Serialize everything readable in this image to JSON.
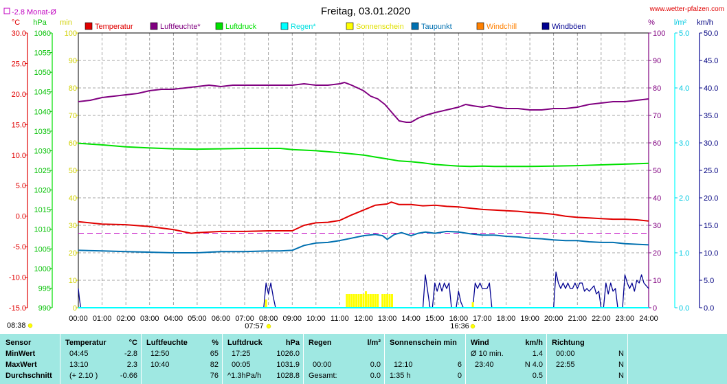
{
  "header": {
    "title": "Freitag, 03.01.2020",
    "site": "www.wetter-pfalzen.com",
    "month_avg_label": "-2.8 Monat-Ø",
    "sunrise_time": "07:57",
    "sunset_time": "16:36",
    "current_time": "08:38"
  },
  "legend": [
    {
      "name": "Temperatur",
      "color": "#e00000"
    },
    {
      "name": "Luftfeuchte*",
      "color": "#800080"
    },
    {
      "name": "Luftdruck",
      "color": "#00e000"
    },
    {
      "name": "Regen*",
      "color": "#00ffff"
    },
    {
      "name": "Sonnenschein",
      "color": "#ffff00"
    },
    {
      "name": "Taupunkt",
      "color": "#0070b0"
    },
    {
      "name": "Windchill",
      "color": "#ff8000"
    },
    {
      "name": "Windböen",
      "color": "#000090"
    }
  ],
  "chart_data": {
    "type": "line",
    "x_ticks": [
      "00:00",
      "01:00",
      "02:00",
      "03:00",
      "04:00",
      "05:00",
      "06:00",
      "07:00",
      "08:00",
      "09:00",
      "10:00",
      "11:00",
      "12:00",
      "13:00",
      "14:00",
      "15:00",
      "16:00",
      "17:00",
      "18:00",
      "19:00",
      "20:00",
      "21:00",
      "22:00",
      "23:00",
      "24:00"
    ],
    "x_range_hours": [
      0,
      24
    ],
    "axes": {
      "temp": {
        "unit": "°C",
        "color": "#e00000",
        "min": -15,
        "max": 30,
        "ticks": [
          "30.0",
          "25.0",
          "20.0",
          "15.0",
          "10.0",
          "5.0",
          "0.0",
          "-5.0",
          "-10.0",
          "-15.0"
        ]
      },
      "pressure": {
        "unit": "hPa",
        "color": "#00e000",
        "min": 990,
        "max": 1060,
        "ticks": [
          "1060",
          "1055",
          "1050",
          "1045",
          "1040",
          "1035",
          "1030",
          "1025",
          "1020",
          "1015",
          "1010",
          "1005",
          "1000",
          "995",
          "990"
        ]
      },
      "sun": {
        "unit": "min",
        "color": "#ffff00",
        "min": 0,
        "max": 100,
        "ticks": [
          "100",
          "90",
          "80",
          "70",
          "60",
          "50",
          "40",
          "30",
          "20",
          "10",
          "0"
        ]
      },
      "humidity": {
        "unit": "%",
        "color": "#800080",
        "min": 0,
        "max": 100,
        "ticks": [
          "100",
          "90",
          "80",
          "70",
          "60",
          "50",
          "40",
          "30",
          "20",
          "10",
          "0"
        ]
      },
      "rain": {
        "unit": "l/m²",
        "color": "#00ffff",
        "min": 0,
        "max": 5,
        "ticks": [
          "5.0",
          "4.0",
          "3.0",
          "2.0",
          "1.0",
          "0.0"
        ]
      },
      "wind": {
        "unit": "km/h",
        "color": "#000090",
        "min": 0,
        "max": 50,
        "ticks": [
          "50.0",
          "45.0",
          "40.0",
          "35.0",
          "30.0",
          "25.0",
          "20.0",
          "15.0",
          "10.0",
          "5.0",
          "0.0"
        ]
      }
    },
    "month_avg_temp": -2.8,
    "series": [
      {
        "name": "Temperatur",
        "axis": "temp",
        "color": "#e00000",
        "x": [
          0,
          1,
          2,
          3,
          4,
          4.75,
          5,
          6,
          7,
          8,
          8.5,
          9,
          9.5,
          10,
          10.5,
          11,
          11.5,
          12,
          12.5,
          13,
          13.17,
          13.5,
          14,
          14.5,
          15,
          15.5,
          16,
          16.5,
          17,
          17.5,
          18,
          18.5,
          19,
          19.5,
          20,
          20.5,
          21,
          21.5,
          22,
          22.5,
          23,
          23.5,
          24
        ],
        "y": [
          -0.9,
          -1.3,
          -1.4,
          -1.7,
          -2.2,
          -2.8,
          -2.7,
          -2.5,
          -2.5,
          -2.4,
          -2.4,
          -2.4,
          -1.5,
          -1.1,
          -1.0,
          -0.7,
          0.2,
          1.0,
          1.8,
          2.0,
          2.3,
          1.9,
          1.9,
          1.7,
          1.8,
          1.6,
          1.5,
          1.3,
          1.1,
          1.0,
          0.9,
          0.8,
          0.6,
          0.5,
          0.3,
          0.0,
          -0.2,
          -0.3,
          -0.4,
          -0.5,
          -0.5,
          -0.6,
          -0.8
        ]
      },
      {
        "name": "Luftfeuchte*",
        "axis": "humidity",
        "color": "#800080",
        "x": [
          0,
          0.5,
          1,
          1.5,
          2,
          2.5,
          3,
          3.5,
          4,
          4.5,
          5,
          5.5,
          6,
          6.5,
          7,
          7.5,
          8,
          8.5,
          9,
          9.5,
          10,
          10.5,
          11,
          11.2,
          11.5,
          12,
          12.3,
          12.6,
          12.9,
          13.2,
          13.5,
          13.8,
          14,
          14.3,
          14.6,
          15,
          15.5,
          16,
          16.3,
          16.6,
          17,
          17.3,
          17.6,
          18,
          18.5,
          19,
          19.5,
          20,
          20.5,
          21,
          21.5,
          22,
          22.5,
          23,
          23.5,
          24
        ],
        "y": [
          75,
          75.5,
          76.5,
          77,
          77.5,
          78,
          79,
          79.5,
          79.5,
          80,
          80.5,
          81,
          80.5,
          81,
          81,
          81,
          81,
          81,
          81,
          81.5,
          81,
          81,
          81.5,
          82,
          81,
          79,
          77,
          76,
          74,
          71,
          68,
          67.5,
          67.5,
          69,
          70,
          71,
          72,
          73,
          74,
          73.5,
          73,
          73.5,
          73,
          72.5,
          72.5,
          72,
          72,
          72.5,
          72.5,
          73,
          74,
          74.5,
          75,
          75,
          75.5,
          76
        ]
      },
      {
        "name": "Luftdruck",
        "axis": "pressure",
        "color": "#00e000",
        "x": [
          0,
          1,
          2,
          3,
          4,
          5,
          6,
          7,
          8,
          8.5,
          9,
          10,
          11,
          12,
          12.5,
          13,
          13.5,
          14,
          14.5,
          15,
          15.5,
          16,
          16.5,
          17,
          17.5,
          18,
          18.5,
          19,
          20,
          21,
          22,
          23,
          24
        ],
        "y": [
          1031.9,
          1031.5,
          1031.0,
          1030.7,
          1030.5,
          1030.4,
          1030.5,
          1030.6,
          1030.6,
          1030.6,
          1030.3,
          1030.0,
          1029.5,
          1028.9,
          1028.4,
          1027.9,
          1027.4,
          1027.2,
          1026.9,
          1026.5,
          1026.3,
          1026.1,
          1026.0,
          1026.1,
          1026.0,
          1026.0,
          1026.0,
          1026.0,
          1026.1,
          1026.2,
          1026.4,
          1026.6,
          1026.8
        ]
      },
      {
        "name": "Taupunkt",
        "axis": "temp",
        "color": "#0070b0",
        "x": [
          0,
          1,
          2,
          3,
          4,
          5,
          6,
          7,
          8,
          8.5,
          9,
          9.5,
          10,
          10.5,
          11,
          11.5,
          12,
          12.5,
          12.8,
          13,
          13.3,
          13.6,
          14,
          14.3,
          14.6,
          15,
          15.5,
          16,
          16.5,
          17,
          17.5,
          18,
          18.5,
          19,
          19.5,
          20,
          20.5,
          21,
          21.5,
          22,
          22.5,
          23,
          23.5,
          24
        ],
        "y": [
          -5.6,
          -5.7,
          -5.8,
          -5.9,
          -6.0,
          -6.0,
          -5.8,
          -5.8,
          -5.7,
          -5.7,
          -5.6,
          -4.8,
          -4.4,
          -4.3,
          -4.0,
          -3.6,
          -3.2,
          -3.0,
          -3.2,
          -3.8,
          -3.0,
          -2.7,
          -3.2,
          -2.8,
          -2.6,
          -2.8,
          -2.5,
          -2.6,
          -2.9,
          -3.1,
          -3.1,
          -3.3,
          -3.4,
          -3.6,
          -3.7,
          -3.9,
          -4.0,
          -4.0,
          -4.2,
          -4.3,
          -4.3,
          -4.5,
          -4.6,
          -4.7
        ]
      },
      {
        "name": "Windböen",
        "axis": "wind",
        "color": "#000090",
        "x": [
          0,
          0.05,
          0.1,
          7.8,
          7.9,
          8.0,
          8.1,
          8.2,
          8.3,
          14.5,
          14.6,
          14.7,
          14.8,
          14.9,
          15.0,
          15.1,
          15.2,
          15.3,
          15.4,
          15.5,
          15.6,
          15.7,
          15.8,
          15.9,
          16.0,
          16.1,
          16.2,
          16.3,
          16.4,
          16.5,
          16.6,
          16.7,
          16.8,
          16.9,
          17.0,
          17.1,
          17.2,
          17.3,
          17.4,
          17.5,
          17.6,
          17.7,
          17.8,
          17.9,
          18.0,
          20.0,
          20.1,
          20.2,
          20.3,
          20.4,
          20.5,
          20.6,
          20.7,
          20.8,
          20.9,
          21.0,
          21.1,
          21.2,
          21.3,
          21.4,
          21.5,
          21.6,
          21.7,
          21.8,
          21.9,
          22.0,
          22.1,
          22.2,
          22.3,
          22.4,
          22.5,
          22.6,
          22.7,
          22.8,
          22.9,
          23.0,
          23.1,
          23.2,
          23.3,
          23.4,
          23.5,
          23.6,
          23.7,
          23.8,
          23.9,
          24.0
        ],
        "y": [
          3.5,
          1.5,
          0,
          0,
          4.5,
          2.5,
          4.5,
          2.0,
          0,
          0,
          6.0,
          3.0,
          0,
          0,
          4.5,
          3.0,
          4.5,
          3.0,
          4.5,
          3.5,
          4.5,
          0,
          0,
          0,
          3.0,
          1.0,
          0,
          0,
          0,
          0,
          0,
          4.5,
          3.5,
          4.5,
          3.5,
          3.5,
          3.5,
          4.5,
          0,
          0,
          0,
          0,
          0,
          0,
          0,
          0,
          6.5,
          4.5,
          3.5,
          4.5,
          3.5,
          4.5,
          3.5,
          3.5,
          4.5,
          3.5,
          4.5,
          4.5,
          3.0,
          3.5,
          3.0,
          3.5,
          4.0,
          2.5,
          3.0,
          0,
          0,
          4.5,
          2.5,
          4.5,
          3.0,
          3.5,
          0,
          0,
          0,
          6.0,
          4.5,
          3.5,
          4.5,
          3.0,
          5.0,
          4.5,
          6.0,
          4.5,
          4.0,
          3.5
        ]
      },
      {
        "name": "Sonnenschein",
        "axis": "sun",
        "color": "#ffff00",
        "type": "bars",
        "x": [
          7.9,
          11.3,
          11.4,
          11.5,
          11.6,
          11.7,
          11.8,
          11.9,
          12.0,
          12.1,
          12.2,
          12.3,
          12.4,
          12.5,
          12.6,
          12.8,
          12.9,
          13.0,
          13.1,
          13.2,
          16.6
        ],
        "y": [
          3,
          5,
          5,
          5,
          5,
          5,
          5,
          5,
          5,
          6,
          5,
          5,
          5,
          5,
          5,
          5,
          5,
          5,
          5,
          5,
          2
        ]
      },
      {
        "name": "Regen*",
        "axis": "rain",
        "color": "#00ffff",
        "x": [
          0,
          24
        ],
        "y": [
          0,
          0
        ]
      }
    ]
  },
  "stats": {
    "sensor": {
      "title": "Sensor",
      "rows": [
        "MinWert",
        "MaxWert",
        "Durchschnitt"
      ]
    },
    "temp": {
      "title": "Temperatur",
      "unit": "°C",
      "min_time": "04:45",
      "min_val": "-2.8",
      "max_time": "13:10",
      "max_val": "2.3",
      "avg_time": "(+ 2.10 )",
      "avg_val": "-0.66"
    },
    "hum": {
      "title": "Luftfeuchte",
      "unit": "%",
      "min_time": "12:50",
      "min_val": "65",
      "max_time": "10:40",
      "max_val": "82",
      "avg_val": "76"
    },
    "press": {
      "title": "Luftdruck",
      "unit": "hPa",
      "min_time": "17:25",
      "min_val": "1026.0",
      "max_time": "00:05",
      "max_val": "1031.9",
      "avg_time": "^1.3hPa/h",
      "avg_val": "1028.8"
    },
    "rain": {
      "title": "Regen",
      "unit": "l/m²",
      "max_time": "00:00",
      "max_val": "0.0",
      "avg_time": "Gesamt:",
      "avg_val": "0.0"
    },
    "sun": {
      "title": "Sonnenschein min",
      "max_time": "12:10",
      "max_val": "6",
      "avg_time": "1:35 h",
      "avg_val": "0"
    },
    "wind": {
      "title": "Wind",
      "unit": "km/h",
      "min_time": "Ø 10 min.",
      "min_val": "1.4",
      "max_time": "23:40",
      "max_val": "N 4.0",
      "avg_val": "0.5"
    },
    "dir": {
      "title": "Richtung",
      "min_time": "00:00",
      "min_val": "N",
      "max_time": "22:55",
      "max_val": "N",
      "avg_val": "N"
    }
  }
}
